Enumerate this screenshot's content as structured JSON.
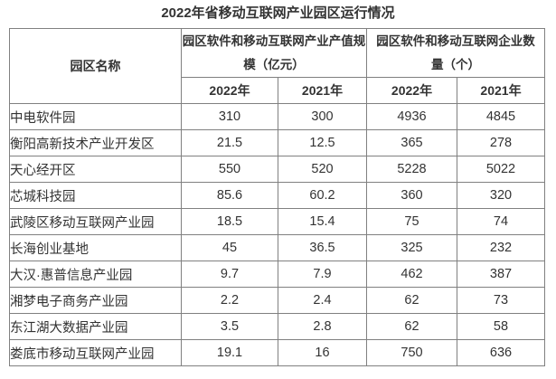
{
  "title": "2022年省移动互联网产业园区运行情况",
  "colors": {
    "background": "#ffffff",
    "border": "#808080",
    "text": "#333333"
  },
  "table": {
    "name_header": "园区名称",
    "group_headers": [
      "园区软件和移动互联网产业产值规模（亿元）",
      "园区软件和移动互联网企业数量（个）"
    ],
    "year_headers": [
      "2022年",
      "2021年",
      "2022年",
      "2021年"
    ],
    "rows": [
      {
        "name": "中电软件园",
        "values": [
          "310",
          "300",
          "4936",
          "4845"
        ]
      },
      {
        "name": "衡阳高新技术产业开发区",
        "values": [
          "21.5",
          "12.5",
          "365",
          "278"
        ]
      },
      {
        "name": "天心经开区",
        "values": [
          "550",
          "520",
          "5228",
          "5022"
        ]
      },
      {
        "name": "芯城科技园",
        "values": [
          "85.6",
          "60.2",
          "360",
          "320"
        ]
      },
      {
        "name": "武陵区移动互联网产业园",
        "values": [
          "18.5",
          "15.4",
          "75",
          "74"
        ]
      },
      {
        "name": "长海创业基地",
        "values": [
          "45",
          "36.5",
          "325",
          "232"
        ]
      },
      {
        "name": "大汉·惠普信息产业园",
        "values": [
          "9.7",
          "7.9",
          "462",
          "387"
        ]
      },
      {
        "name": "湘梦电子商务产业园",
        "values": [
          "2.2",
          "2.4",
          "62",
          "73"
        ]
      },
      {
        "name": "东江湖大数据产业园",
        "values": [
          "3.5",
          "2.8",
          "62",
          "58"
        ]
      },
      {
        "name": "娄底市移动互联网产业园",
        "values": [
          "19.1",
          "16",
          "750",
          "636"
        ]
      }
    ]
  }
}
